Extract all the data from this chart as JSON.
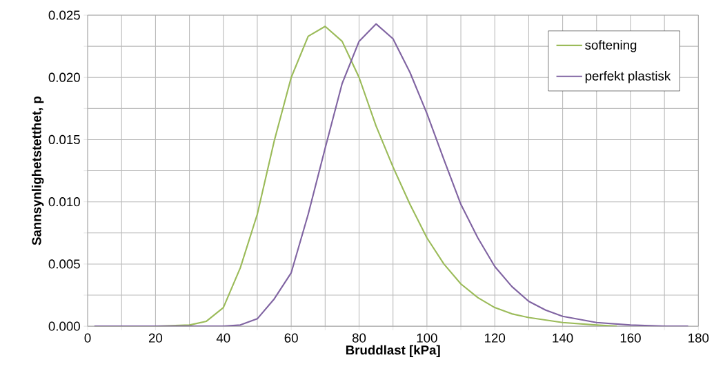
{
  "chart_data": {
    "type": "line",
    "xlabel": "Bruddlast [kPa]",
    "ylabel": "Sannsynlighetstetthet, p",
    "xlim": [
      0,
      180
    ],
    "ylim": [
      0,
      0.025
    ],
    "xticks": [
      {
        "value": 0,
        "label": "0"
      },
      {
        "value": 10,
        "label": null
      },
      {
        "value": 20,
        "label": "20"
      },
      {
        "value": 30,
        "label": null
      },
      {
        "value": 40,
        "label": "40"
      },
      {
        "value": 50,
        "label": null
      },
      {
        "value": 60,
        "label": "60"
      },
      {
        "value": 70,
        "label": null
      },
      {
        "value": 80,
        "label": "80"
      },
      {
        "value": 90,
        "label": null
      },
      {
        "value": 100,
        "label": "100"
      },
      {
        "value": 110,
        "label": null
      },
      {
        "value": 120,
        "label": "120"
      },
      {
        "value": 130,
        "label": null
      },
      {
        "value": 140,
        "label": "140"
      },
      {
        "value": 150,
        "label": null
      },
      {
        "value": 160,
        "label": "160"
      },
      {
        "value": 170,
        "label": null
      },
      {
        "value": 180,
        "label": "180"
      }
    ],
    "yticks": [
      {
        "value": 0,
        "label": "0.000"
      },
      {
        "value": 0.0025,
        "label": null
      },
      {
        "value": 0.005,
        "label": "0.005"
      },
      {
        "value": 0.0075,
        "label": null
      },
      {
        "value": 0.01,
        "label": "0.010"
      },
      {
        "value": 0.0125,
        "label": null
      },
      {
        "value": 0.015,
        "label": "0.015"
      },
      {
        "value": 0.0175,
        "label": null
      },
      {
        "value": 0.02,
        "label": "0.020"
      },
      {
        "value": 0.0225,
        "label": null
      },
      {
        "value": 0.025,
        "label": "0.025"
      }
    ],
    "grid": true,
    "legend": "top right",
    "marker": "none",
    "line_style": "solid",
    "series": [
      {
        "name": "softening",
        "color": "#9bbb59",
        "x": [
          2,
          10,
          20,
          30,
          35,
          40,
          45,
          50,
          55,
          60,
          65,
          70,
          75,
          80,
          85,
          90,
          95,
          100,
          105,
          110,
          115,
          120,
          125,
          130,
          140,
          150,
          156
        ],
        "values": [
          0,
          0,
          0,
          0.0001,
          0.0004,
          0.0015,
          0.0047,
          0.009,
          0.0149,
          0.02,
          0.0233,
          0.0241,
          0.0229,
          0.02,
          0.0161,
          0.0128,
          0.0098,
          0.0071,
          0.005,
          0.0034,
          0.0023,
          0.0015,
          0.001,
          0.0007,
          0.0003,
          0.0001,
          0
        ]
      },
      {
        "name": "perfekt plastisk",
        "color": "#8064a2",
        "x": [
          2,
          20,
          40,
          45,
          50,
          55,
          60,
          65,
          70,
          75,
          80,
          85,
          90,
          95,
          100,
          105,
          110,
          115,
          120,
          125,
          130,
          135,
          140,
          150,
          160,
          170,
          177
        ],
        "values": [
          0,
          0,
          0,
          0.0001,
          0.0006,
          0.0022,
          0.0043,
          0.009,
          0.0143,
          0.0195,
          0.0229,
          0.0243,
          0.0231,
          0.0204,
          0.0171,
          0.0134,
          0.0098,
          0.0071,
          0.0048,
          0.0032,
          0.002,
          0.0013,
          0.0008,
          0.0003,
          0.0001,
          0,
          0
        ]
      }
    ]
  }
}
